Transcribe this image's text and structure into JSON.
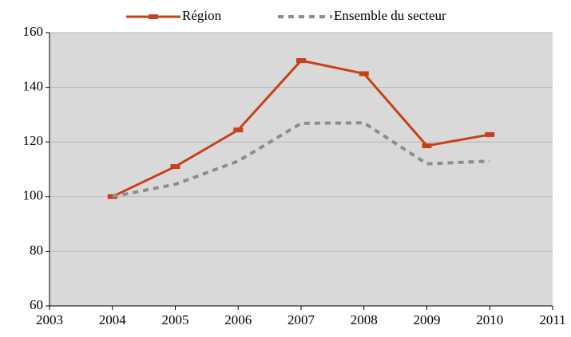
{
  "chart_data": {
    "type": "line",
    "x": [
      2004,
      2005,
      2006,
      2007,
      2008,
      2009,
      2010
    ],
    "series": [
      {
        "name": "Région",
        "color": "#c8401a",
        "dash": false,
        "marker": "square",
        "values": [
          100,
          111,
          124.4,
          149.8,
          145,
          118.6,
          122.7
        ]
      },
      {
        "name": "Ensemble du secteur",
        "color": "#8c8c8c",
        "dash": true,
        "values": [
          100,
          104.5,
          113,
          126.8,
          127,
          112,
          113
        ]
      }
    ],
    "xlim": [
      2003,
      2011
    ],
    "xticks": [
      2003,
      2004,
      2005,
      2006,
      2007,
      2008,
      2009,
      2010,
      2011
    ],
    "ylim": [
      60,
      160
    ],
    "yticks": [
      60,
      80,
      100,
      120,
      140,
      160
    ],
    "grid": true,
    "background": "#d9d9d9",
    "legend": "top"
  }
}
